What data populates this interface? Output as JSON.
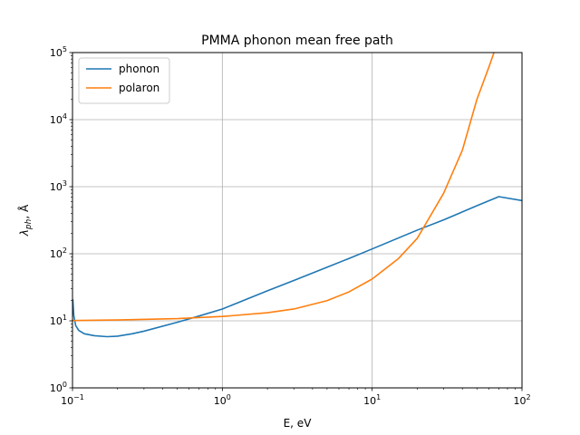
{
  "chart_data": {
    "type": "line",
    "title": "PMMA phonon mean free path",
    "xlabel": "E, eV",
    "ylabel_base": "λ",
    "ylabel_sub": "ph",
    "ylabel_unit": ", Å",
    "xscale": "log",
    "yscale": "log",
    "xlim": [
      0.1,
      100
    ],
    "ylim": [
      1,
      100000
    ],
    "x_ticks": [
      {
        "value": 0.1,
        "base": "10",
        "exp": "−1"
      },
      {
        "value": 1,
        "base": "10",
        "exp": "0"
      },
      {
        "value": 10,
        "base": "10",
        "exp": "1"
      },
      {
        "value": 100,
        "base": "10",
        "exp": "2"
      }
    ],
    "y_ticks": [
      {
        "value": 1,
        "base": "10",
        "exp": "0"
      },
      {
        "value": 10,
        "base": "10",
        "exp": "1"
      },
      {
        "value": 100,
        "base": "10",
        "exp": "2"
      },
      {
        "value": 1000,
        "base": "10",
        "exp": "3"
      },
      {
        "value": 10000,
        "base": "10",
        "exp": "4"
      },
      {
        "value": 100000,
        "base": "10",
        "exp": "5"
      }
    ],
    "grid": true,
    "legend_position": "top-left",
    "series": [
      {
        "name": "phonon",
        "color": "#1f77b4",
        "x": [
          0.1005,
          0.102,
          0.105,
          0.11,
          0.12,
          0.14,
          0.17,
          0.2,
          0.25,
          0.3,
          0.5,
          0.7,
          1,
          2,
          3,
          5,
          7,
          10,
          20,
          30,
          50,
          70,
          100
        ],
        "y": [
          21,
          12,
          8.5,
          7.2,
          6.4,
          6.0,
          5.8,
          5.9,
          6.4,
          7.0,
          9.5,
          11.8,
          15,
          28,
          40,
          63,
          85,
          118,
          225,
          320,
          520,
          710,
          620
        ]
      },
      {
        "name": "polaron",
        "color": "#ff7f0e",
        "x": [
          0.1,
          0.2,
          0.5,
          1,
          2,
          3,
          5,
          7,
          10,
          15,
          20,
          30,
          40,
          50,
          60,
          65
        ],
        "y": [
          10.1,
          10.3,
          10.8,
          11.6,
          13.2,
          15,
          20,
          27,
          42,
          85,
          170,
          800,
          3500,
          20000,
          60000,
          100000
        ]
      }
    ]
  }
}
